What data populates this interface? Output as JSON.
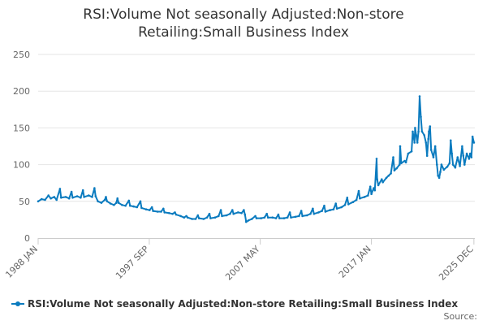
{
  "chart_data": {
    "type": "line",
    "title_lines": [
      "RSI:Volume Not seasonally Adjusted:Non-store",
      "Retailing:Small Business Index"
    ],
    "ylim": [
      0,
      250
    ],
    "y_ticks": [
      0,
      50,
      100,
      150,
      200,
      250
    ],
    "y_tick_labels": [
      "0",
      "50",
      "100",
      "150",
      "200",
      "250"
    ],
    "x_range": [
      1988.0,
      2026.0
    ],
    "x_ticks": [
      {
        "label": "1988 JAN",
        "value": 1988.0
      },
      {
        "label": "1997 SEP",
        "value": 1997.67
      },
      {
        "label": "2007 MAY",
        "value": 2007.33
      },
      {
        "label": "2017 JAN",
        "value": 2017.0
      },
      {
        "label": "2025 DEC",
        "value": 2025.92
      }
    ],
    "grid": true,
    "legend_position": "bottom-left",
    "series": [
      {
        "name": "RSI:Volume Not seasonally Adjusted:Non-store Retailing:Small Business Index",
        "color": "#0b7bbf",
        "points": [
          [
            1988.0,
            50
          ],
          [
            1988.3,
            53
          ],
          [
            1988.6,
            52
          ],
          [
            1988.9,
            58
          ],
          [
            1989.1,
            54
          ],
          [
            1989.4,
            56
          ],
          [
            1989.6,
            52
          ],
          [
            1989.9,
            67
          ],
          [
            1990.0,
            55
          ],
          [
            1990.4,
            56
          ],
          [
            1990.7,
            54
          ],
          [
            1990.9,
            63
          ],
          [
            1991.0,
            55
          ],
          [
            1991.4,
            57
          ],
          [
            1991.7,
            55
          ],
          [
            1991.9,
            65
          ],
          [
            1992.0,
            56
          ],
          [
            1992.4,
            58
          ],
          [
            1992.7,
            56
          ],
          [
            1992.9,
            68
          ],
          [
            1993.0,
            57
          ],
          [
            1993.2,
            50
          ],
          [
            1993.5,
            48
          ],
          [
            1993.8,
            52
          ],
          [
            1993.9,
            56
          ],
          [
            1994.0,
            50
          ],
          [
            1994.3,
            47
          ],
          [
            1994.6,
            45
          ],
          [
            1994.8,
            48
          ],
          [
            1994.9,
            54
          ],
          [
            1995.0,
            48
          ],
          [
            1995.3,
            45
          ],
          [
            1995.6,
            44
          ],
          [
            1995.9,
            51
          ],
          [
            1996.0,
            44
          ],
          [
            1996.3,
            43
          ],
          [
            1996.6,
            42
          ],
          [
            1996.9,
            50
          ],
          [
            1997.0,
            41
          ],
          [
            1997.4,
            39
          ],
          [
            1997.7,
            38
          ],
          [
            1997.9,
            42
          ],
          [
            1998.0,
            37
          ],
          [
            1998.4,
            36
          ],
          [
            1998.7,
            36
          ],
          [
            1998.9,
            40
          ],
          [
            1999.0,
            35
          ],
          [
            1999.4,
            34
          ],
          [
            1999.7,
            33
          ],
          [
            1999.9,
            35
          ],
          [
            2000.0,
            32
          ],
          [
            2000.4,
            30
          ],
          [
            2000.7,
            28
          ],
          [
            2000.9,
            30
          ],
          [
            2001.0,
            28
          ],
          [
            2001.4,
            26
          ],
          [
            2001.7,
            26
          ],
          [
            2001.9,
            31
          ],
          [
            2002.0,
            27
          ],
          [
            2002.4,
            26
          ],
          [
            2002.7,
            28
          ],
          [
            2002.9,
            33
          ],
          [
            2003.0,
            27
          ],
          [
            2003.4,
            28
          ],
          [
            2003.7,
            30
          ],
          [
            2003.9,
            38
          ],
          [
            2004.0,
            30
          ],
          [
            2004.4,
            31
          ],
          [
            2004.7,
            33
          ],
          [
            2004.9,
            38
          ],
          [
            2005.0,
            33
          ],
          [
            2005.4,
            35
          ],
          [
            2005.7,
            34
          ],
          [
            2005.9,
            38
          ],
          [
            2006.0,
            32
          ],
          [
            2006.1,
            22
          ],
          [
            2006.3,
            24
          ],
          [
            2006.6,
            26
          ],
          [
            2006.9,
            30
          ],
          [
            2007.0,
            27
          ],
          [
            2007.4,
            27
          ],
          [
            2007.7,
            28
          ],
          [
            2007.9,
            33
          ],
          [
            2008.0,
            28
          ],
          [
            2008.4,
            28
          ],
          [
            2008.7,
            27
          ],
          [
            2008.9,
            32
          ],
          [
            2009.0,
            27
          ],
          [
            2009.4,
            27
          ],
          [
            2009.7,
            28
          ],
          [
            2009.9,
            35
          ],
          [
            2010.0,
            28
          ],
          [
            2010.4,
            29
          ],
          [
            2010.7,
            30
          ],
          [
            2010.9,
            37
          ],
          [
            2011.0,
            30
          ],
          [
            2011.4,
            31
          ],
          [
            2011.7,
            33
          ],
          [
            2011.9,
            40
          ],
          [
            2012.0,
            33
          ],
          [
            2012.4,
            35
          ],
          [
            2012.7,
            37
          ],
          [
            2012.9,
            44
          ],
          [
            2013.0,
            36
          ],
          [
            2013.4,
            38
          ],
          [
            2013.7,
            39
          ],
          [
            2013.9,
            47
          ],
          [
            2014.0,
            40
          ],
          [
            2014.4,
            42
          ],
          [
            2014.7,
            45
          ],
          [
            2014.9,
            55
          ],
          [
            2015.0,
            46
          ],
          [
            2015.4,
            49
          ],
          [
            2015.7,
            52
          ],
          [
            2015.9,
            64
          ],
          [
            2016.0,
            54
          ],
          [
            2016.4,
            56
          ],
          [
            2016.7,
            58
          ],
          [
            2016.9,
            70
          ],
          [
            2017.0,
            60
          ],
          [
            2017.2,
            68
          ],
          [
            2017.3,
            65
          ],
          [
            2017.45,
            108
          ],
          [
            2017.5,
            80
          ],
          [
            2017.6,
            72
          ],
          [
            2017.9,
            80
          ],
          [
            2018.0,
            76
          ],
          [
            2018.3,
            82
          ],
          [
            2018.5,
            85
          ],
          [
            2018.7,
            88
          ],
          [
            2018.9,
            110
          ],
          [
            2019.0,
            92
          ],
          [
            2019.2,
            95
          ],
          [
            2019.45,
            100
          ],
          [
            2019.5,
            125
          ],
          [
            2019.6,
            102
          ],
          [
            2019.9,
            105
          ],
          [
            2020.0,
            103
          ],
          [
            2020.2,
            115
          ],
          [
            2020.5,
            118
          ],
          [
            2020.6,
            145
          ],
          [
            2020.75,
            130
          ],
          [
            2020.8,
            150
          ],
          [
            2020.9,
            140
          ],
          [
            2021.0,
            130
          ],
          [
            2021.1,
            145
          ],
          [
            2021.2,
            193
          ],
          [
            2021.3,
            165
          ],
          [
            2021.4,
            145
          ],
          [
            2021.6,
            140
          ],
          [
            2021.75,
            130
          ],
          [
            2021.85,
            112
          ],
          [
            2021.95,
            135
          ],
          [
            2022.0,
            145
          ],
          [
            2022.1,
            152
          ],
          [
            2022.2,
            120
          ],
          [
            2022.4,
            110
          ],
          [
            2022.55,
            125
          ],
          [
            2022.7,
            100
          ],
          [
            2022.8,
            85
          ],
          [
            2022.9,
            82
          ],
          [
            2023.0,
            90
          ],
          [
            2023.1,
            100
          ],
          [
            2023.3,
            93
          ],
          [
            2023.6,
            97
          ],
          [
            2023.8,
            102
          ],
          [
            2023.9,
            133
          ],
          [
            2024.0,
            115
          ],
          [
            2024.1,
            100
          ],
          [
            2024.3,
            96
          ],
          [
            2024.5,
            110
          ],
          [
            2024.7,
            98
          ],
          [
            2024.9,
            125
          ],
          [
            2025.0,
            112
          ],
          [
            2025.1,
            100
          ],
          [
            2025.3,
            115
          ],
          [
            2025.5,
            108
          ],
          [
            2025.6,
            115
          ],
          [
            2025.7,
            110
          ],
          [
            2025.8,
            138
          ],
          [
            2025.92,
            130
          ]
        ]
      }
    ]
  },
  "legend": {
    "label": "RSI:Volume Not seasonally Adjusted:Non-store Retailing:Small Business Index"
  },
  "footer": {
    "source_label": "Source:"
  }
}
